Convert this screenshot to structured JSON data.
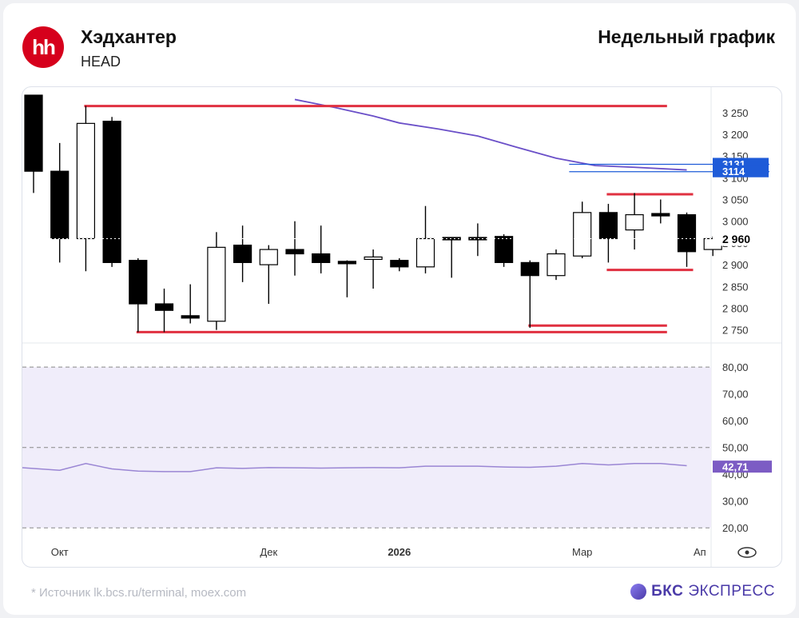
{
  "header": {
    "logo_text": "hh",
    "company": "Хэдхантер",
    "ticker": "HEAD",
    "period": "Недельный график"
  },
  "footer": {
    "source": "* Источник lk.bcs.ru/terminal, moex.com",
    "brand_strong": "БКС",
    "brand_rest": "ЭКСПРЕСС"
  },
  "colors": {
    "candle_down": "#000000",
    "candle_up": "#ffffff",
    "level": "#e03040",
    "ma": "#6a4fc8",
    "ma_label": "#1e5bd8",
    "rsi": "#9a86d4",
    "rsi_label": "#7c5cc4",
    "rsi_band": "#f0edfa"
  },
  "chart_data": [
    {
      "type": "candlestick",
      "title": "",
      "ylim": [
        2720,
        3290
      ],
      "y_ticks": [
        2750,
        2800,
        2850,
        2900,
        2950,
        3000,
        3050,
        3100,
        3150,
        3200,
        3250
      ],
      "y_tick_labels": [
        "2 750",
        "2 800",
        "2 850",
        "2 900",
        "2 950",
        "3 000",
        "3 050",
        "3 100",
        "3 150",
        "3 200",
        "3 250"
      ],
      "x_labels": [
        {
          "label": "Окт",
          "index": 1
        },
        {
          "label": "Дек",
          "index": 9
        },
        {
          "label": "2026",
          "index": 14
        },
        {
          "label": "Мар",
          "index": 21
        },
        {
          "label": "Ап",
          "index": 25.5
        }
      ],
      "candles": [
        {
          "o": 3290,
          "h": 3290,
          "l": 3065,
          "c": 3115
        },
        {
          "o": 3115,
          "h": 3180,
          "l": 2905,
          "c": 2960
        },
        {
          "o": 2960,
          "h": 3265,
          "l": 2885,
          "c": 3225
        },
        {
          "o": 3230,
          "h": 3240,
          "l": 2895,
          "c": 2905
        },
        {
          "o": 2910,
          "h": 2915,
          "l": 2745,
          "c": 2810
        },
        {
          "o": 2810,
          "h": 2845,
          "l": 2745,
          "c": 2795
        },
        {
          "o": 2780,
          "h": 2855,
          "l": 2765,
          "c": 2775
        },
        {
          "o": 2770,
          "h": 2975,
          "l": 2750,
          "c": 2940
        },
        {
          "o": 2945,
          "h": 2990,
          "l": 2860,
          "c": 2905
        },
        {
          "o": 2900,
          "h": 2945,
          "l": 2810,
          "c": 2935
        },
        {
          "o": 2935,
          "h": 3000,
          "l": 2875,
          "c": 2925
        },
        {
          "o": 2925,
          "h": 2990,
          "l": 2880,
          "c": 2905
        },
        {
          "o": 2905,
          "h": 2910,
          "l": 2825,
          "c": 2900
        },
        {
          "o": 2910,
          "h": 2935,
          "l": 2845,
          "c": 2915
        },
        {
          "o": 2910,
          "h": 2915,
          "l": 2885,
          "c": 2895
        },
        {
          "o": 2895,
          "h": 3035,
          "l": 2880,
          "c": 2960
        },
        {
          "o": 2960,
          "h": 2960,
          "l": 2870,
          "c": 2960
        },
        {
          "o": 2960,
          "h": 2995,
          "l": 2920,
          "c": 2960
        },
        {
          "o": 2965,
          "h": 2970,
          "l": 2895,
          "c": 2905
        },
        {
          "o": 2905,
          "h": 2910,
          "l": 2755,
          "c": 2875
        },
        {
          "o": 2875,
          "h": 2935,
          "l": 2865,
          "c": 2925
        },
        {
          "o": 2920,
          "h": 3045,
          "l": 2915,
          "c": 3020
        },
        {
          "o": 3020,
          "h": 3040,
          "l": 2905,
          "c": 2960
        },
        {
          "o": 2980,
          "h": 3065,
          "l": 2935,
          "c": 3015
        },
        {
          "o": 3015,
          "h": 3050,
          "l": 2995,
          "c": 3015
        },
        {
          "o": 3015,
          "h": 3020,
          "l": 2895,
          "c": 2930
        },
        {
          "o": 2935,
          "h": 2965,
          "l": 2920,
          "c": 2960
        }
      ],
      "levels": [
        {
          "value": 3265,
          "from": 2,
          "to": 24
        },
        {
          "value": 3062,
          "from": 22,
          "to": 25
        },
        {
          "value": 2888,
          "from": 22,
          "to": 25
        },
        {
          "value": 2760,
          "from": 19,
          "to": 24
        },
        {
          "value": 2745,
          "from": 4,
          "to": 24
        }
      ],
      "ma_lines": [
        {
          "value": 3131,
          "label": "3131"
        },
        {
          "value": 3114,
          "label": "3114"
        }
      ],
      "ma_series": [
        {
          "x": 10,
          "y": 3280
        },
        {
          "x": 11.5,
          "y": 3262
        },
        {
          "x": 13,
          "y": 3242
        },
        {
          "x": 14,
          "y": 3226
        },
        {
          "x": 15.5,
          "y": 3212
        },
        {
          "x": 17,
          "y": 3196
        },
        {
          "x": 18.5,
          "y": 3170
        },
        {
          "x": 20,
          "y": 3145
        },
        {
          "x": 21.5,
          "y": 3128
        },
        {
          "x": 23,
          "y": 3124
        },
        {
          "x": 25,
          "y": 3118
        }
      ],
      "last_price": {
        "value": 2960,
        "label": "2 960"
      }
    },
    {
      "type": "line",
      "title": "",
      "ylim": [
        15,
        89
      ],
      "y_ticks": [
        20,
        30,
        40,
        50,
        60,
        70,
        80
      ],
      "y_tick_labels": [
        "20,00",
        "30,00",
        "40,00",
        "50,00",
        "60,00",
        "70,00",
        "80,00"
      ],
      "band": [
        20,
        80
      ],
      "dashed_levels": [
        20,
        50,
        80
      ],
      "x": [
        -0.5,
        1,
        2,
        3,
        4,
        5,
        6,
        7,
        8,
        9,
        10,
        11,
        12,
        13,
        14,
        15,
        16,
        17,
        18,
        19,
        20,
        21,
        22,
        23,
        24,
        25
      ],
      "values": [
        42.5,
        41.5,
        44,
        42,
        41.2,
        41,
        41,
        42.4,
        42.2,
        42.5,
        42.4,
        42.3,
        42.4,
        42.5,
        42.4,
        43,
        43,
        43,
        42.7,
        42.6,
        43,
        44,
        43.5,
        44,
        44,
        43.2
      ],
      "last_value": {
        "value": 42.71,
        "label": "42,71"
      }
    }
  ]
}
